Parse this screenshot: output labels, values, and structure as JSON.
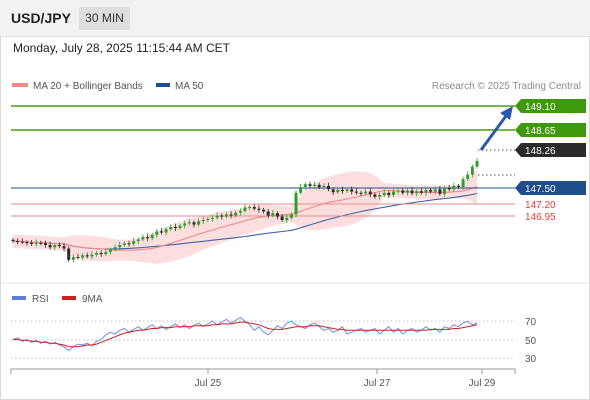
{
  "header": {
    "symbol": "USD/JPY",
    "timeframe": "30 MIN",
    "datetime": "Monday, July 28, 2025 11:15:44 AM CET"
  },
  "legend": {
    "ma20": "MA 20 + Bollinger Bands",
    "ma50": "MA 50",
    "ma20_color": "#f28b8b",
    "ma50_color": "#1f4e8c",
    "source": "Research © 2025 Trading Central"
  },
  "rsi_legend": {
    "rsi": "RSI",
    "ma": "9MA",
    "rsi_color": "#5b7fd6",
    "ma_color": "#cc2222"
  },
  "levels": {
    "resistance_2": "149.10",
    "resistance_1": "148.65",
    "current": "148.26",
    "pivot": "147.50",
    "support_1": "147.20",
    "support_2": "146.95",
    "resistance_color": "#4a9e0f",
    "pivot_color": "#1f4e8c",
    "support_color": "#e04040"
  },
  "rsi_axis": [
    "70",
    "50",
    "30"
  ],
  "x_axis": [
    "Jul 25",
    "Jul 27",
    "Jul 29"
  ],
  "chart_data": {
    "type": "candlestick",
    "instrument": "USD/JPY",
    "interval": "30 MIN",
    "price_ylim": [
      146.2,
      149.35
    ],
    "close": [
      146.85,
      146.84,
      146.83,
      146.82,
      146.8,
      146.82,
      146.81,
      146.78,
      146.74,
      146.78,
      146.76,
      146.72,
      146.52,
      146.57,
      146.56,
      146.6,
      146.58,
      146.61,
      146.64,
      146.62,
      146.66,
      146.7,
      146.74,
      146.78,
      146.81,
      146.8,
      146.85,
      146.88,
      146.92,
      146.9,
      146.96,
      147.02,
      147.0,
      147.06,
      147.1,
      147.08,
      147.12,
      147.16,
      147.18,
      147.14,
      147.2,
      147.22,
      147.24,
      147.26,
      147.3,
      147.28,
      147.32,
      147.3,
      147.35,
      147.38,
      147.44,
      147.45,
      147.42,
      147.4,
      147.37,
      147.3,
      147.34,
      147.28,
      147.22,
      147.26,
      147.32,
      147.7,
      147.8,
      147.85,
      147.82,
      147.84,
      147.8,
      147.82,
      147.76,
      147.71,
      147.75,
      147.73,
      147.76,
      147.72,
      147.7,
      147.69,
      147.72,
      147.67,
      147.63,
      147.66,
      147.7,
      147.66,
      147.72,
      147.74,
      147.7,
      147.74,
      147.69,
      147.73,
      147.7,
      147.75,
      147.72,
      147.76,
      147.68,
      147.79,
      147.76,
      147.82,
      147.8,
      147.94,
      148.02,
      148.16,
      148.26
    ],
    "rsi_ylim": [
      20,
      80
    ],
    "rsi": [
      50,
      52,
      48,
      50,
      47,
      49,
      46,
      48,
      45,
      47,
      44,
      42,
      38,
      42,
      45,
      44,
      46,
      43,
      48,
      50,
      55,
      58,
      56,
      60,
      62,
      58,
      61,
      64,
      60,
      63,
      66,
      62,
      65,
      61,
      64,
      67,
      63,
      66,
      62,
      65,
      68,
      64,
      67,
      70,
      66,
      69,
      72,
      68,
      71,
      74,
      70,
      66,
      60,
      64,
      58,
      55,
      60,
      65,
      62,
      68,
      70,
      66,
      64,
      62,
      66,
      68,
      64,
      60,
      62,
      58,
      60,
      64,
      56,
      58,
      60,
      62,
      58,
      60,
      62,
      56,
      60,
      64,
      58,
      62,
      56,
      60,
      62,
      58,
      60,
      64,
      60,
      62,
      58,
      64,
      62,
      66,
      64,
      68,
      70,
      66,
      68
    ],
    "rsi_ma": [
      50,
      50,
      49,
      49,
      48,
      48,
      47,
      47,
      46,
      46,
      45,
      44,
      42,
      42,
      42,
      43,
      44,
      44,
      45,
      47,
      49,
      51,
      53,
      55,
      57,
      58,
      59,
      60,
      60,
      61,
      62,
      62,
      63,
      63,
      63,
      64,
      64,
      64,
      64,
      65,
      65,
      65,
      65,
      66,
      66,
      67,
      67,
      67,
      68,
      69,
      69,
      68,
      67,
      66,
      64,
      62,
      61,
      61,
      61,
      62,
      63,
      64,
      64,
      64,
      65,
      65,
      65,
      64,
      63,
      62,
      61,
      61,
      60,
      60,
      60,
      60,
      60,
      60,
      60,
      60,
      60,
      60,
      60,
      60,
      60,
      60,
      60,
      60,
      60,
      60,
      61,
      61,
      61,
      61,
      61,
      62,
      62,
      63,
      64,
      65,
      66
    ]
  }
}
